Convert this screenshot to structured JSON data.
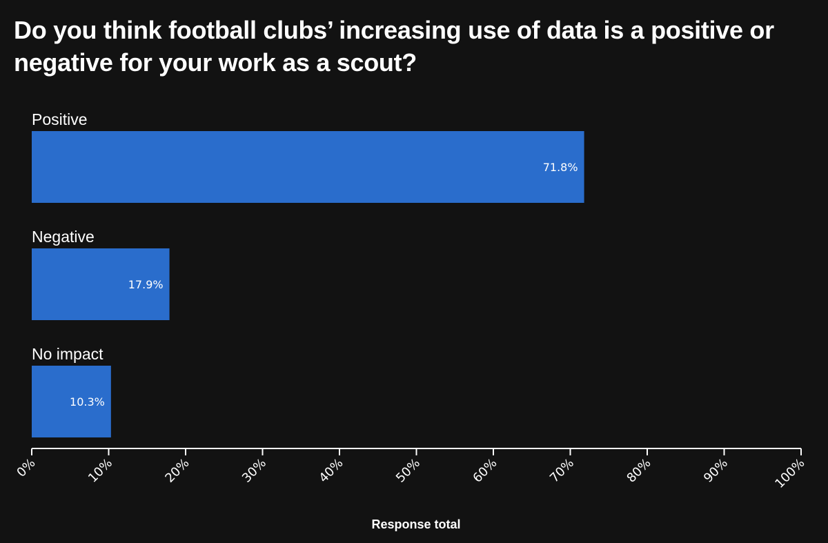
{
  "chart_data": {
    "type": "bar",
    "orientation": "horizontal",
    "title": "Do you think football clubs’ increasing use of data is a positive or negative for your work as a scout?",
    "categories": [
      "Positive",
      "Negative",
      "No impact"
    ],
    "values": [
      71.8,
      17.9,
      10.3
    ],
    "value_labels": [
      "71.8%",
      "17.9%",
      "10.3%"
    ],
    "xlabel": "Response total",
    "ylabel": "",
    "xlim": [
      0,
      100
    ],
    "ticks": [
      0,
      10,
      20,
      30,
      40,
      50,
      60,
      70,
      80,
      90,
      100
    ],
    "tick_labels": [
      "0%",
      "10%",
      "20%",
      "30%",
      "40%",
      "50%",
      "60%",
      "70%",
      "80%",
      "90%",
      "100%"
    ],
    "grid": false,
    "legend": "none",
    "colors": {
      "bar": "#2a6dcc",
      "background": "#121212",
      "text": "#ffffff",
      "axis": "#ffffff"
    }
  }
}
